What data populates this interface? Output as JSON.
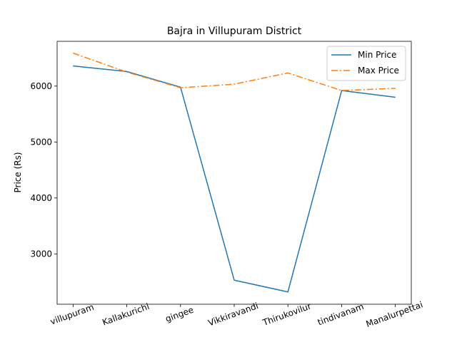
{
  "chart_data": {
    "type": "line",
    "title": "Bajra in Villupuram District",
    "xlabel": "",
    "ylabel": "Price (Rs)",
    "categories": [
      "villupuram",
      "Kallakurichi",
      "gingee",
      "Vikkiravandi",
      "Thirukovilur",
      "tindivanam",
      "Manalurpettai"
    ],
    "ylim": [
      2100,
      6800
    ],
    "yticks": [
      3000,
      4000,
      5000,
      6000
    ],
    "series": [
      {
        "name": "Min Price",
        "values": [
          6360,
          6260,
          5980,
          2530,
          2320,
          5920,
          5800
        ],
        "color": "#1f77b4",
        "style": "solid"
      },
      {
        "name": "Max Price",
        "values": [
          6590,
          6250,
          5970,
          6035,
          6235,
          5920,
          5960
        ],
        "color": "#ff7f0e",
        "style": "dashdot"
      }
    ],
    "legend": "top-right",
    "grid": false
  }
}
